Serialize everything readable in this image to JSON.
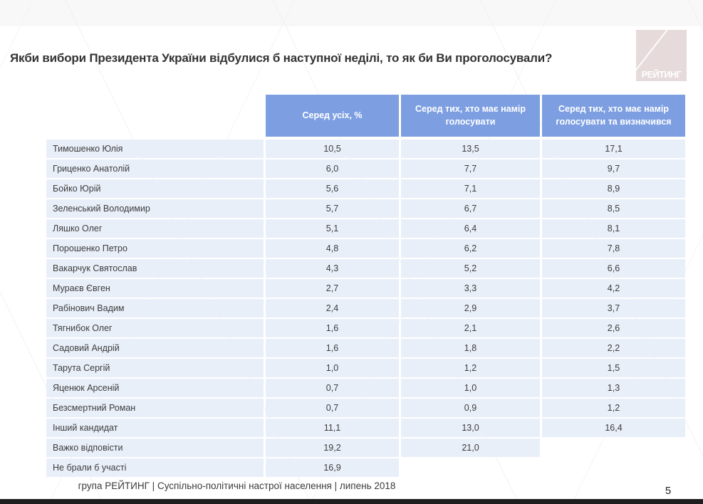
{
  "title": "Якби вибори Президента України відбулися б наступної неділі, то як би Ви проголосували?",
  "logo": {
    "text": "РЕЙТИНГ"
  },
  "table": {
    "columns": [
      "Серед усіх, %",
      "Серед тих, хто має намір голосувати",
      "Серед тих, хто має намір голосувати та визначився"
    ],
    "rows": [
      {
        "name": "Тимошенко Юлія",
        "values": [
          "10,5",
          "13,5",
          "17,1"
        ]
      },
      {
        "name": "Гриценко Анатолій",
        "values": [
          "6,0",
          "7,7",
          "9,7"
        ]
      },
      {
        "name": "Бойко Юрій",
        "values": [
          "5,6",
          "7,1",
          "8,9"
        ]
      },
      {
        "name": "Зеленський Володимир",
        "values": [
          "5,7",
          "6,7",
          "8,5"
        ]
      },
      {
        "name": "Ляшко Олег",
        "values": [
          "5,1",
          "6,4",
          "8,1"
        ]
      },
      {
        "name": "Порошенко Петро",
        "values": [
          "4,8",
          "6,2",
          "7,8"
        ]
      },
      {
        "name": "Вакарчук Святослав",
        "values": [
          "4,3",
          "5,2",
          "6,6"
        ]
      },
      {
        "name": "Мураєв Євген",
        "values": [
          "2,7",
          "3,3",
          "4,2"
        ]
      },
      {
        "name": "Рабінович Вадим",
        "values": [
          "2,4",
          "2,9",
          "3,7"
        ]
      },
      {
        "name": "Тягнибок Олег",
        "values": [
          "1,6",
          "2,1",
          "2,6"
        ]
      },
      {
        "name": "Садовий Андрій",
        "values": [
          "1,6",
          "1,8",
          "2,2"
        ]
      },
      {
        "name": "Тарута Сергій",
        "values": [
          "1,0",
          "1,2",
          "1,5"
        ]
      },
      {
        "name": "Яценюк Арсеній",
        "values": [
          "0,7",
          "1,0",
          "1,3"
        ]
      },
      {
        "name": "Безсмертний Роман",
        "values": [
          "0,7",
          "0,9",
          "1,2"
        ]
      },
      {
        "name": "Інший кандидат",
        "values": [
          "11,1",
          "13,0",
          "16,4"
        ]
      },
      {
        "name": "Важко відповісти",
        "values": [
          "19,2",
          "21,0",
          null
        ]
      },
      {
        "name": "Не брали б участі",
        "values": [
          "16,9",
          null,
          null
        ]
      }
    ]
  },
  "footer": {
    "text": "група РЕЙТИНГ |  Суспільно-політичні настрої населення |  липень 2018",
    "page_number": "5"
  },
  "colors": {
    "header_bg": "#7d9fe2",
    "row_bg": "#e9eff9",
    "logo_bg": "#e6dbda",
    "bottom_bar": "#1e1e1e"
  },
  "chart_data": {
    "type": "table",
    "title": "Якби вибори Президента України відбулися б наступної неділі, то як би Ви проголосували?",
    "categories": [
      "Тимошенко Юлія",
      "Гриценко Анатолій",
      "Бойко Юрій",
      "Зеленський Володимир",
      "Ляшко Олег",
      "Порошенко Петро",
      "Вакарчук Святослав",
      "Мураєв Євген",
      "Рабінович Вадим",
      "Тягнибок Олег",
      "Садовий Андрій",
      "Тарута Сергій",
      "Яценюк Арсеній",
      "Безсмертний Роман",
      "Інший кандидат",
      "Важко відповісти",
      "Не брали б участі"
    ],
    "series": [
      {
        "name": "Серед усіх, %",
        "values": [
          10.5,
          6.0,
          5.6,
          5.7,
          5.1,
          4.8,
          4.3,
          2.7,
          2.4,
          1.6,
          1.6,
          1.0,
          0.7,
          0.7,
          11.1,
          19.2,
          16.9
        ]
      },
      {
        "name": "Серед тих, хто має намір голосувати",
        "values": [
          13.5,
          7.7,
          7.1,
          6.7,
          6.4,
          6.2,
          5.2,
          3.3,
          2.9,
          2.1,
          1.8,
          1.2,
          1.0,
          0.9,
          13.0,
          21.0,
          null
        ]
      },
      {
        "name": "Серед тих, хто має намір голосувати та визначився",
        "values": [
          17.1,
          9.7,
          8.9,
          8.5,
          8.1,
          7.8,
          6.6,
          4.2,
          3.7,
          2.6,
          2.2,
          1.5,
          1.3,
          1.2,
          16.4,
          null,
          null
        ]
      }
    ],
    "units": "%",
    "legend_position": "column-headers",
    "grid": false
  }
}
